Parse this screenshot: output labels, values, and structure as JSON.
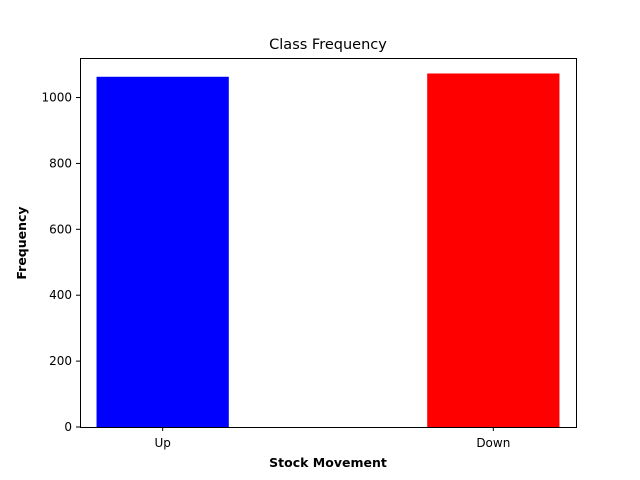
{
  "chart_data": {
    "type": "bar",
    "title": "Class Frequency",
    "xlabel": "Stock Movement",
    "ylabel": "Frequency",
    "categories": [
      "Up",
      "Down"
    ],
    "values": [
      1063,
      1073
    ],
    "colors": [
      "#0000ff",
      "#ff0000"
    ],
    "ylim": [
      0,
      1120
    ],
    "yticks": [
      0,
      200,
      400,
      600,
      800,
      1000
    ],
    "grid": false,
    "legend": "none"
  }
}
